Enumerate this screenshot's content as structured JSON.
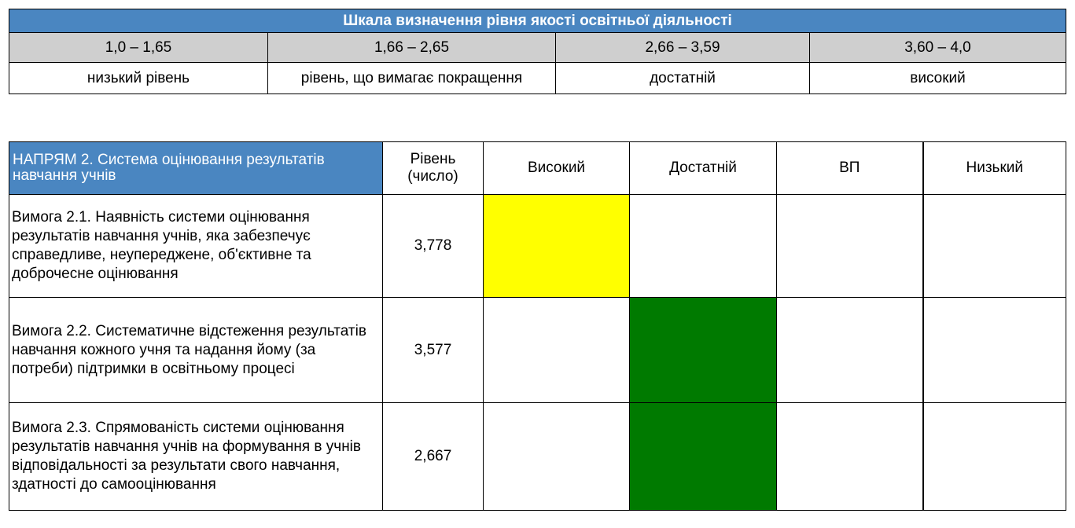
{
  "scale": {
    "title": "Шкала визначення рівня якості освітньої діяльності",
    "ranges": [
      "1,0 – 1,65",
      "1,66 – 2,65",
      "2,66 – 3,59",
      "3,60 – 4,0"
    ],
    "labels": [
      "низький рівень",
      "рівень, що вимагає покращення",
      "достатній",
      "високий"
    ]
  },
  "main": {
    "header": {
      "direction": "НАПРЯМ 2. Система оцінювання результатів навчання учнів",
      "level": "Рівень (число)",
      "high": "Високий",
      "sufficient": "Достатній",
      "vp": "ВП",
      "low": "Низький"
    },
    "rows": [
      {
        "requirement": "Вимога 2.1. Наявність системи оцінювання результатів навчання учнів, яка забезпечує справедливе, неупереджене, об'єктивне та доброчесне оцінювання",
        "level": "3,778",
        "marked": "high"
      },
      {
        "requirement": "Вимога 2.2. Систематичне відстеження результатів навчання кожного учня та надання йому (за потреби) підтримки в освітньому процесі",
        "level": "3,577",
        "marked": "sufficient"
      },
      {
        "requirement": "Вимога 2.3. Спрямованість системи оцінювання результатів навчання учнів на формування в учнів відповідальності за результати свого навчання, здатності до самооцінювання",
        "level": "2,667",
        "marked": "sufficient"
      }
    ]
  },
  "colors": {
    "header_blue": "#4a86c1",
    "range_gray": "#cfcfcf",
    "high_marker": "#ffff00",
    "sufficient_marker": "#007a00"
  }
}
